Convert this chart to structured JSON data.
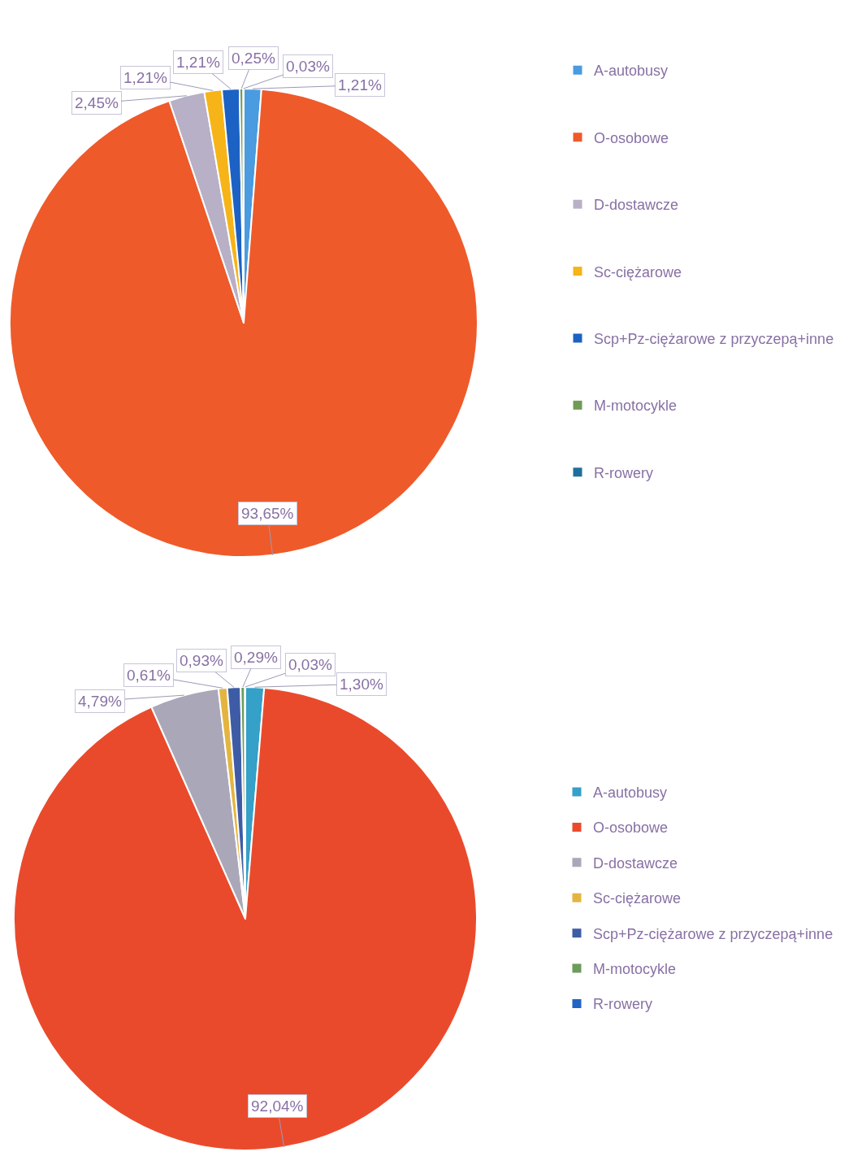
{
  "chart_data": [
    {
      "type": "pie",
      "categories": [
        "A-autobusy",
        "O-osobowe",
        "D-dostawcze",
        "Sc-ciężarowe",
        "Scp+Pz-ciężarowe z przyczepą+inne",
        "M-motocykle",
        "R-rowery"
      ],
      "values": [
        1.21,
        93.65,
        2.45,
        1.21,
        1.21,
        0.25,
        0.03
      ],
      "colors": [
        "#4a9be0",
        "#ef5a2a",
        "#b7b0c6",
        "#f6b418",
        "#1c62c4",
        "#6f9b55",
        "#1f6e9e"
      ],
      "value_labels": [
        "1,21%",
        "93,65%",
        "2,45%",
        "1,21%",
        "1,21%",
        "0,25%",
        "0,03%"
      ],
      "legend": "right"
    },
    {
      "type": "pie",
      "categories": [
        "A-autobusy",
        "O-osobowe",
        "D-dostawcze",
        "Sc-ciężarowe",
        "Scp+Pz-ciężarowe z przyczepą+inne",
        "M-motocykle",
        "R-rowery"
      ],
      "values": [
        1.3,
        92.04,
        4.79,
        0.61,
        0.93,
        0.29,
        0.03
      ],
      "colors": [
        "#35a0c8",
        "#ea4a2c",
        "#aaa8b8",
        "#e3b540",
        "#3e5ca6",
        "#6b9b5d",
        "#2164c6"
      ],
      "value_labels": [
        "1,30%",
        "92,04%",
        "4,79%",
        "0,61%",
        "0,93%",
        "0,29%",
        "0,03%"
      ],
      "legend": "right"
    }
  ]
}
